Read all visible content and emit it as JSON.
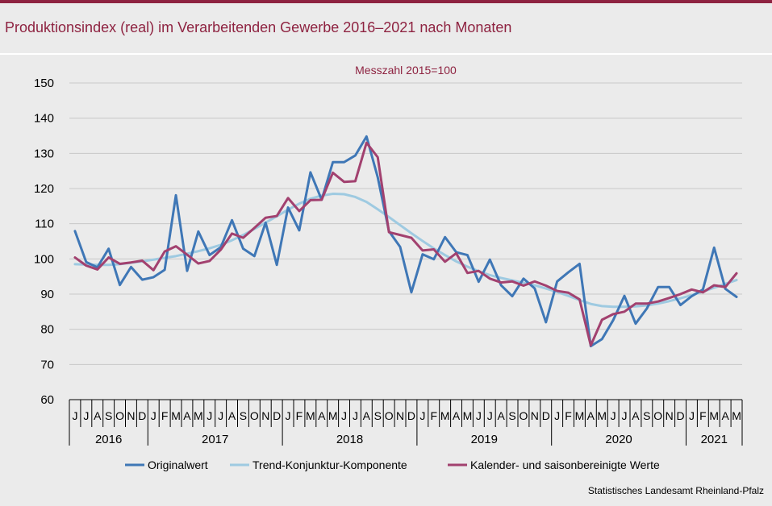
{
  "header": {
    "title": "Produktionsindex (real) im Verarbeitenden Gewerbe 2016–2021 nach Monaten"
  },
  "source": "Statistisches Landesamt Rheinland-Pfalz",
  "colors": {
    "accent": "#8e2341",
    "original": "#3f77b6",
    "trend": "#9ecae1",
    "adjusted": "#a2416f",
    "background": "#ebebeb"
  },
  "chart_data": {
    "type": "line",
    "subtitle": "Messzahl 2015=100",
    "xlabel": "",
    "ylabel": "",
    "ylim": [
      60,
      150
    ],
    "yticks": [
      60,
      70,
      80,
      90,
      100,
      110,
      120,
      130,
      140,
      150
    ],
    "grid": true,
    "legend": "bottom",
    "x": [
      "J",
      "J",
      "A",
      "S",
      "O",
      "N",
      "D",
      "J",
      "F",
      "M",
      "A",
      "M",
      "J",
      "J",
      "A",
      "S",
      "O",
      "N",
      "D",
      "J",
      "F",
      "M",
      "A",
      "M",
      "J",
      "J",
      "A",
      "S",
      "O",
      "N",
      "D",
      "J",
      "F",
      "M",
      "A",
      "M",
      "J",
      "J",
      "A",
      "S",
      "O",
      "N",
      "D",
      "J",
      "F",
      "M",
      "A",
      "M",
      "J",
      "J",
      "A",
      "S",
      "O",
      "N",
      "D",
      "J",
      "F",
      "M",
      "A",
      "M"
    ],
    "years": [
      {
        "label": "2016",
        "months": 7
      },
      {
        "label": "2017",
        "months": 12
      },
      {
        "label": "2018",
        "months": 12
      },
      {
        "label": "2019",
        "months": 12
      },
      {
        "label": "2020",
        "months": 12
      },
      {
        "label": "2021",
        "months": 5
      }
    ],
    "series": [
      {
        "name": "Originalwert",
        "color": "#3f77b6",
        "values": [
          107.9,
          99.1,
          97.6,
          102.9,
          92.6,
          97.7,
          94.1,
          94.8,
          96.9,
          118.1,
          96.6,
          107.8,
          101.1,
          103.3,
          111.0,
          102.9,
          100.8,
          110.3,
          98.3,
          114.6,
          108.1,
          124.6,
          116.8,
          127.5,
          127.5,
          129.4,
          134.8,
          123.2,
          107.9,
          103.4,
          90.5,
          101.3,
          99.9,
          106.2,
          101.9,
          101.1,
          93.5,
          99.8,
          92.5,
          89.4,
          94.4,
          91.6,
          82.0,
          93.6,
          96.2,
          98.6,
          75.2,
          77.2,
          82.6,
          89.5,
          81.6,
          85.9,
          92.0,
          92.0,
          86.9,
          89.4,
          91.3,
          103.2,
          91.5,
          89.2
        ]
      },
      {
        "name": "Trend-Konjunktur-Komponente",
        "color": "#9ecae1",
        "values": [
          98.5,
          98.4,
          98.3,
          98.3,
          98.5,
          98.9,
          99.3,
          99.8,
          100.3,
          100.8,
          101.5,
          102.2,
          103.0,
          104.0,
          105.3,
          106.8,
          108.5,
          110.3,
          112.1,
          114.0,
          115.7,
          117.1,
          118.0,
          118.5,
          118.4,
          117.6,
          116.2,
          114.1,
          111.9,
          109.6,
          107.3,
          105.1,
          103.0,
          101.1,
          99.3,
          97.8,
          96.5,
          95.4,
          94.6,
          93.9,
          93.2,
          92.5,
          91.6,
          90.6,
          89.5,
          88.3,
          87.2,
          86.6,
          86.4,
          86.4,
          86.5,
          86.8,
          87.3,
          88.0,
          88.8,
          89.7,
          90.7,
          91.8,
          92.9,
          94.0
        ]
      },
      {
        "name": "Kalender- und saisonbereinigte Werte",
        "color": "#a2416f",
        "values": [
          100.4,
          98.1,
          97.0,
          100.4,
          98.6,
          99.0,
          99.5,
          96.8,
          102.1,
          103.6,
          101.2,
          98.7,
          99.4,
          102.6,
          107.2,
          106.0,
          108.8,
          111.7,
          112.2,
          117.3,
          113.6,
          116.7,
          116.8,
          124.5,
          121.9,
          122.1,
          133.0,
          128.9,
          107.6,
          106.8,
          106.0,
          102.4,
          102.7,
          99.2,
          101.6,
          96.0,
          96.6,
          94.4,
          93.3,
          93.6,
          92.4,
          93.6,
          92.4,
          90.9,
          90.4,
          88.5,
          75.4,
          82.7,
          84.3,
          85.0,
          87.3,
          87.3,
          87.9,
          88.9,
          90.0,
          91.3,
          90.5,
          92.5,
          92.0,
          95.9
        ]
      }
    ]
  }
}
